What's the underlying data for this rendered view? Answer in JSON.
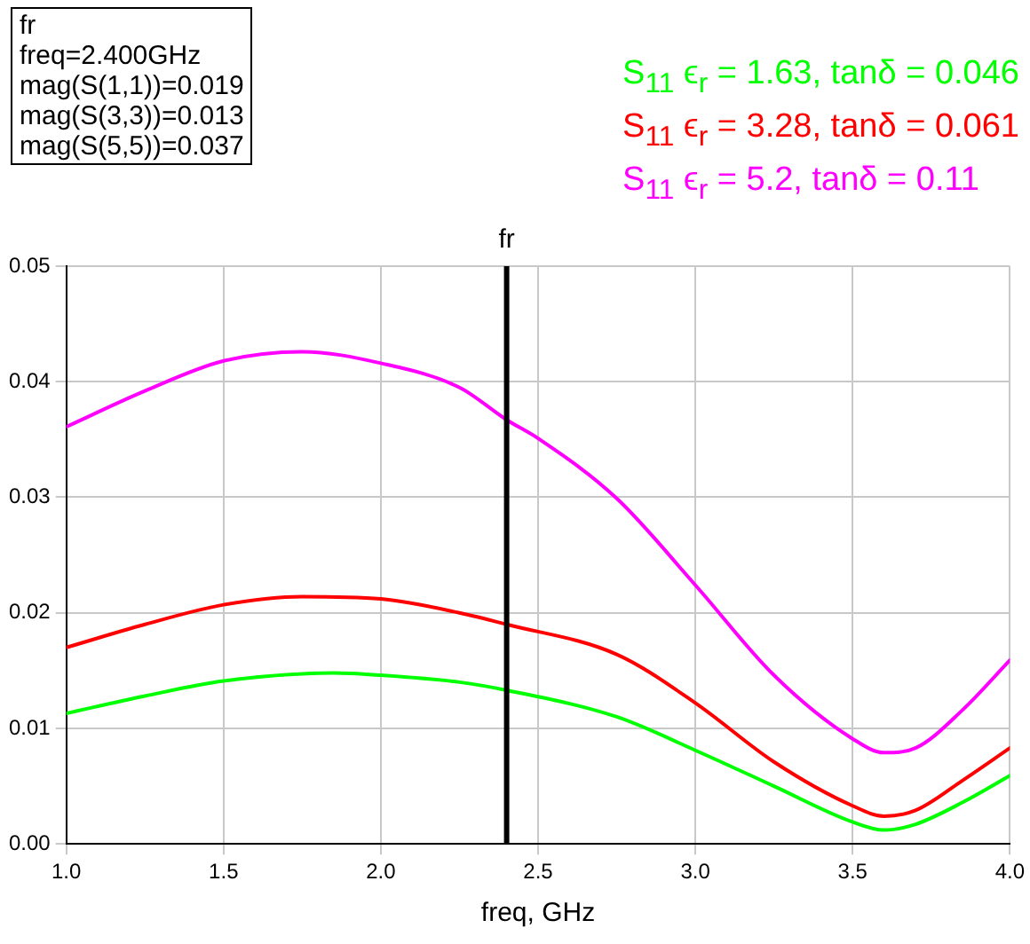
{
  "chart_data": {
    "type": "line",
    "xlabel": "freq, GHz",
    "annotations": [
      "fr",
      "freq=2.400GHz",
      "mag(S(1,1))=0.019",
      "mag(S(3,3))=0.013",
      "mag(S(5,5))=0.037"
    ],
    "series": [
      {
        "name": "S$_{11}$ ϵ$_{r}$ = 1.63, tanδ = 0.046",
        "color": "#00ff00",
        "x": [
          1.0,
          1.25,
          1.5,
          1.85,
          2.0,
          2.25,
          2.4,
          2.75,
          3.0,
          3.25,
          3.5,
          3.6,
          3.7,
          3.85,
          4.0
        ],
        "values": [
          0.0113,
          0.0128,
          0.0141,
          0.0148,
          0.0146,
          0.014,
          0.0133,
          0.011,
          0.0081,
          0.005,
          0.0019,
          0.0012,
          0.0017,
          0.0036,
          0.0059
        ]
      },
      {
        "name": "S$_{11}$ ϵ$_{r}$ = 3.28, tanδ = 0.061",
        "color": "#ff0000",
        "x": [
          1.0,
          1.25,
          1.5,
          1.75,
          2.0,
          2.25,
          2.4,
          2.75,
          3.0,
          3.25,
          3.5,
          3.6,
          3.7,
          3.85,
          4.0
        ],
        "values": [
          0.017,
          0.019,
          0.0207,
          0.0214,
          0.0212,
          0.02,
          0.019,
          0.0164,
          0.0122,
          0.0071,
          0.0033,
          0.0024,
          0.0029,
          0.0055,
          0.0083
        ]
      },
      {
        "name": "S$_{11}$ ϵ$_{r}$ = 5.2, tanδ = 0.11",
        "color": "#ff00ff",
        "x": [
          1.0,
          1.25,
          1.5,
          1.75,
          2.0,
          2.25,
          2.4,
          2.5,
          2.75,
          3.0,
          3.25,
          3.5,
          3.6,
          3.7,
          3.85,
          4.0
        ],
        "values": [
          0.0361,
          0.0392,
          0.0418,
          0.0426,
          0.0416,
          0.0395,
          0.0367,
          0.0351,
          0.0299,
          0.0224,
          0.0146,
          0.0091,
          0.0079,
          0.0083,
          0.0116,
          0.0159
        ]
      }
    ],
    "xlim": [
      1.0,
      4.0
    ],
    "xticks": [
      {
        "value": 1,
        "label": "1.0"
      },
      {
        "value": 1.5,
        "label": "1.5"
      },
      {
        "value": 2,
        "label": "2.0"
      },
      {
        "value": 2.5,
        "label": "2.5"
      },
      {
        "value": 3,
        "label": "3.0"
      },
      {
        "value": 3.5,
        "label": "3.5"
      },
      {
        "value": 4,
        "label": "4.0"
      }
    ],
    "ylim": [
      0,
      0.05
    ],
    "yticks": [
      {
        "value": 0,
        "label": "0.00"
      },
      {
        "value": 0.01,
        "label": "0.01"
      },
      {
        "value": 0.02,
        "label": "0.02"
      },
      {
        "value": 0.03,
        "label": "0.03"
      },
      {
        "value": 0.04,
        "label": "0.04"
      },
      {
        "value": 0.05,
        "label": "0.05"
      }
    ],
    "ref_lines": [
      {
        "axis": "x",
        "value": 2.4,
        "label": "fr",
        "color": "#000000"
      }
    ],
    "grid": true,
    "legend": "top right",
    "marker": "none",
    "line_style": "solid"
  }
}
